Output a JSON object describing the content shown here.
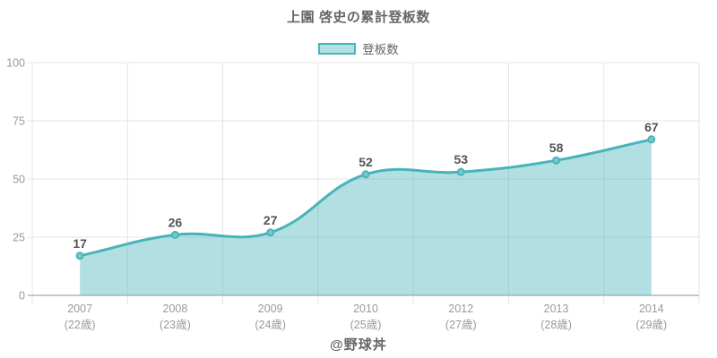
{
  "chart": {
    "title": "上園 啓史の累計登板数",
    "legend_label": "登板数",
    "footer": "@野球丼"
  },
  "chart_data": {
    "type": "area",
    "title": "上園 啓史の累計登板数",
    "categories": [
      "2007",
      "2008",
      "2009",
      "2010",
      "2012",
      "2013",
      "2014"
    ],
    "category_sublabels": [
      "(22歳)",
      "(23歳)",
      "(24歳)",
      "(25歳)",
      "(27歳)",
      "(28歳)",
      "(29歳)"
    ],
    "series": [
      {
        "name": "登板数",
        "values": [
          17,
          26,
          27,
          52,
          53,
          58,
          67
        ]
      }
    ],
    "ylim": [
      0,
      100
    ],
    "yticks": [
      0,
      25,
      50,
      75,
      100
    ],
    "grid": true,
    "legend_position": "top",
    "line_tension": 0.4,
    "colors": {
      "line": "#47b4ba",
      "area_fill": "#47b4ba",
      "area_opacity": 0.42,
      "marker_fill": "#77c9cd",
      "grid": "#e4e4e4",
      "axis_line": "#c7c7c7",
      "tick_text": "#9a9a9a",
      "data_label": "#545454",
      "title_text": "#666666"
    }
  }
}
